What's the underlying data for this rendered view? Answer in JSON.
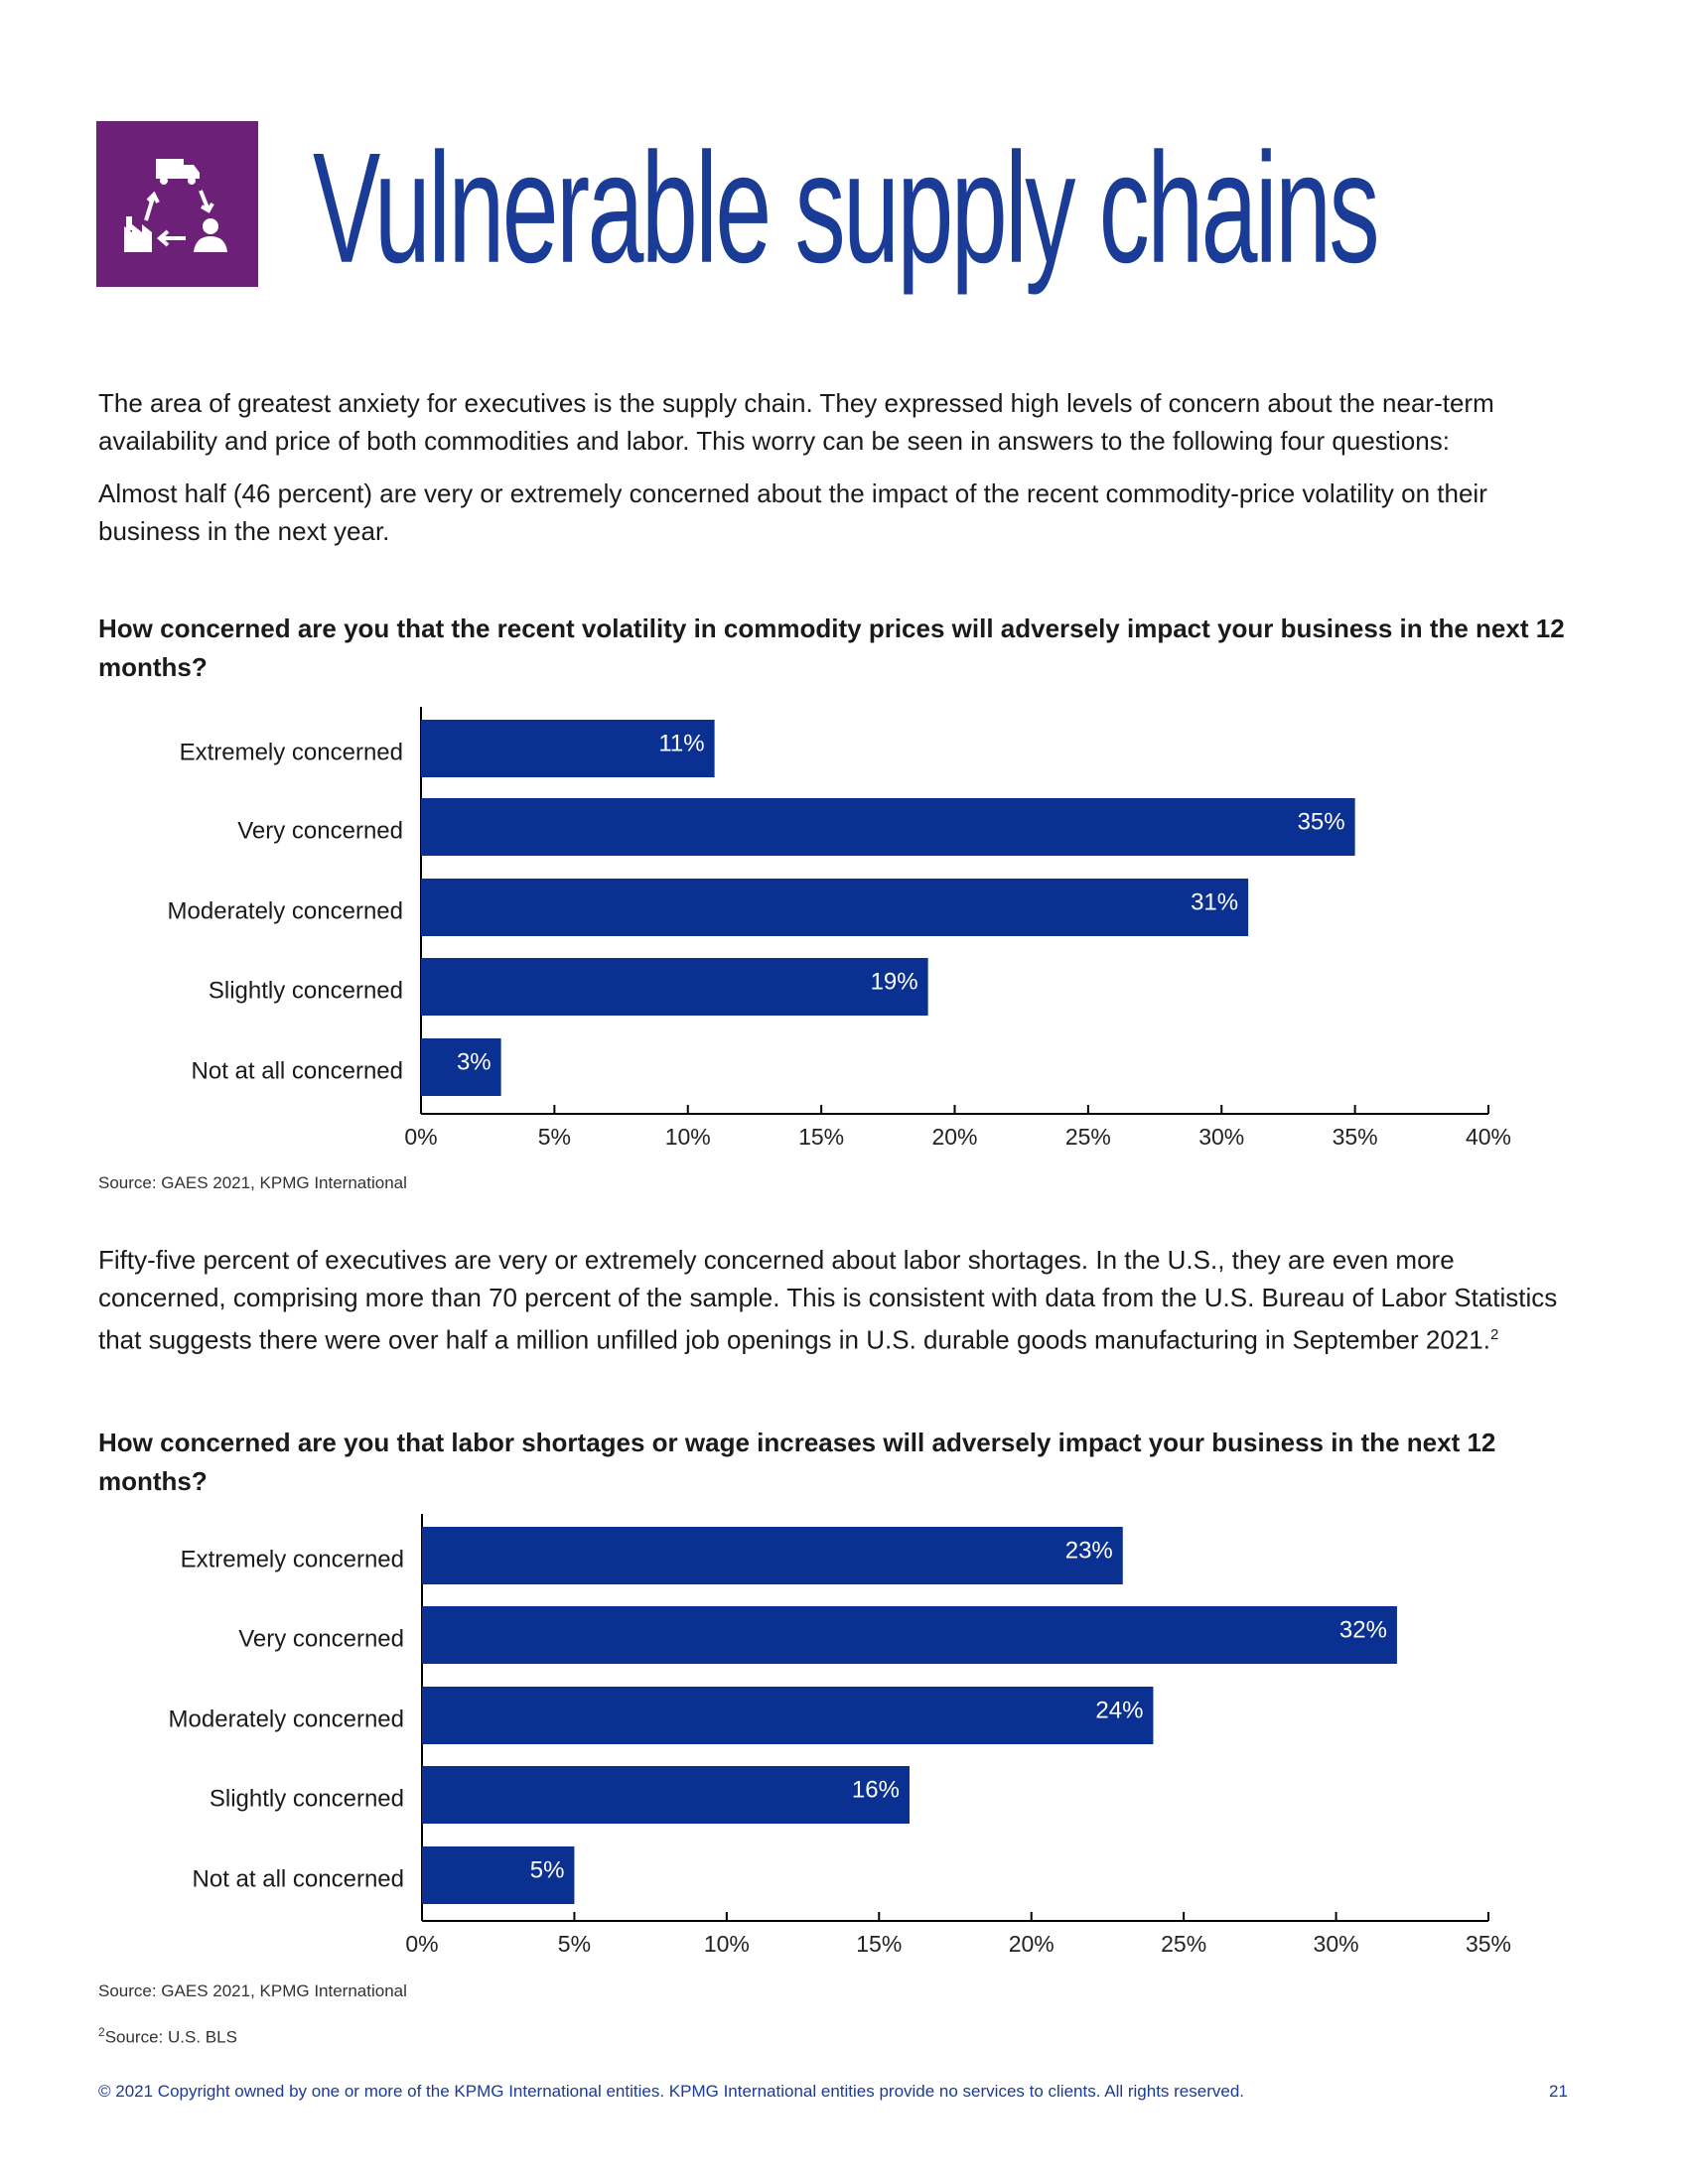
{
  "header": {
    "title": "Vulnerable supply chains"
  },
  "intro": [
    "The area of greatest anxiety for executives is the supply chain. They expressed high levels of concern about the near-term availability and price of both commodities and labor. This worry can be seen in answers to the following four questions:",
    "Almost half (46 percent) are very or extremely concerned about the impact of the recent commodity-price volatility on their business in the next year."
  ],
  "labor_text": {
    "text": "Fifty-five percent of executives are very or extremely concerned about labor shortages. In the U.S., they are even more concerned, comprising more than 70 percent of the sample. This is consistent with data from the U.S. Bureau of Labor Statistics that suggests there were over half a million unfilled job openings in U.S. durable goods manufacturing in September 2021.",
    "footnote_ref": "2"
  },
  "chart_data": [
    {
      "type": "bar",
      "orientation": "horizontal",
      "title": "How concerned are you that the recent volatility in commodity prices will adversely impact your business in the next 12 months?",
      "categories": [
        "Extremely concerned",
        "Very concerned",
        "Moderately concerned",
        "Slightly concerned",
        "Not at all concerned"
      ],
      "values": [
        11,
        35,
        31,
        19,
        3
      ],
      "value_labels": [
        "11%",
        "35%",
        "31%",
        "19%",
        "3%"
      ],
      "color": "#0a3091",
      "xlim": [
        0,
        40
      ],
      "xticks": [
        {
          "value": 0,
          "label": "0%"
        },
        {
          "value": 5,
          "label": "5%"
        },
        {
          "value": 10,
          "label": "10%"
        },
        {
          "value": 15,
          "label": "15%"
        },
        {
          "value": 20,
          "label": "20%"
        },
        {
          "value": 25,
          "label": "25%"
        },
        {
          "value": 30,
          "label": "30%"
        },
        {
          "value": 35,
          "label": "35%"
        },
        {
          "value": 40,
          "label": "40%"
        }
      ],
      "source": "Source: GAES 2021, KPMG International"
    },
    {
      "type": "bar",
      "orientation": "horizontal",
      "title": "How concerned are you that labor shortages or wage increases will adversely impact your business in the next 12 months?",
      "categories": [
        "Extremely concerned",
        "Very concerned",
        "Moderately concerned",
        "Slightly concerned",
        "Not at all concerned"
      ],
      "values": [
        23,
        32,
        24,
        16,
        5
      ],
      "value_labels": [
        "23%",
        "32%",
        "24%",
        "16%",
        "5%"
      ],
      "color": "#0a3091",
      "xlim": [
        0,
        35
      ],
      "xticks": [
        {
          "value": 0,
          "label": "0%"
        },
        {
          "value": 5,
          "label": "5%"
        },
        {
          "value": 10,
          "label": "10%"
        },
        {
          "value": 15,
          "label": "15%"
        },
        {
          "value": 20,
          "label": "20%"
        },
        {
          "value": 25,
          "label": "25%"
        },
        {
          "value": 30,
          "label": "30%"
        },
        {
          "value": 35,
          "label": "35%"
        }
      ],
      "source": "Source: GAES 2021, KPMG International"
    }
  ],
  "footnote": {
    "marker": "2",
    "text": "Source: U.S. BLS"
  },
  "footer": {
    "copyright": "© 2021 Copyright owned by one or more of the KPMG International entities. KPMG International entities provide no services to clients. All rights reserved.",
    "page": "21"
  }
}
